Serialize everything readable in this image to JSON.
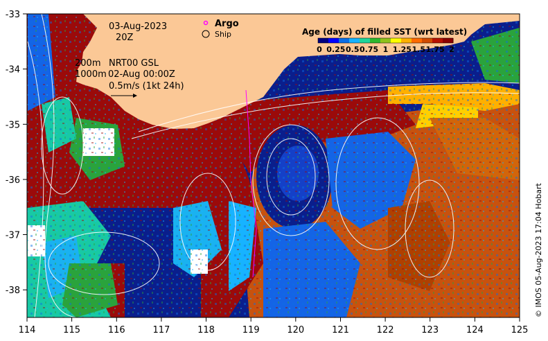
{
  "map": {
    "date": "03-Aug-2023",
    "time": "20Z",
    "depth_lines": [
      "200m",
      "1000m"
    ],
    "product": "NRT00 GSL",
    "product_time": "02-Aug 00:00Z",
    "current_scale": "0.5m/s (1kt 24h)",
    "legend_argo": "Argo",
    "legend_ship": "Ship",
    "credit": "© IMOS 05-Aug-2023 17:04 Hobart"
  },
  "colorbar": {
    "title": "Age (days) of filled SST (wrt latest)",
    "tick_labels": [
      "0",
      "0.25",
      "0.5",
      "0.75",
      "1",
      "1.25",
      "1.5",
      "1.75",
      "2"
    ],
    "colors": [
      "#00007f",
      "#0000ff",
      "#0a6ee6",
      "#17b3ff",
      "#1fd69a",
      "#2db82d",
      "#8fc21b",
      "#ffff00",
      "#ffb000",
      "#ff6a00",
      "#d04a00",
      "#b81000",
      "#8b0000"
    ]
  },
  "axes": {
    "lon_labels": [
      "114",
      "115",
      "116",
      "117",
      "118",
      "119",
      "120",
      "121",
      "122",
      "123",
      "124",
      "125"
    ],
    "lat_labels": [
      "-33",
      "-34",
      "-35",
      "-36",
      "-37",
      "-38"
    ]
  },
  "colors": {
    "land": "#fbc896",
    "deep_red": "#9b0a0a",
    "orange_brown": "#c8520e",
    "navy": "#0a1e8c",
    "blue": "#1464e6",
    "cyan": "#1ab2f0",
    "teal": "#18c9a4",
    "green": "#2aa33c",
    "argo": "#ff00ff"
  }
}
